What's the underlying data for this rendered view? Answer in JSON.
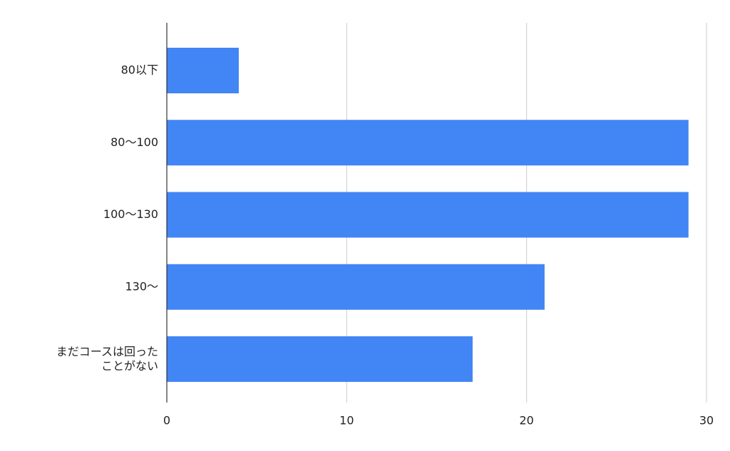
{
  "chart_data": {
    "type": "bar",
    "orientation": "horizontal",
    "categories": [
      "80以下",
      "80〜100",
      "100〜130",
      "130〜",
      "まだコースは回ったことがない"
    ],
    "values": [
      4,
      29,
      29,
      21,
      17
    ],
    "color": "#4285f4",
    "xlim": [
      0,
      30
    ],
    "xticks": [
      0,
      10,
      20,
      30
    ],
    "grid": true
  }
}
